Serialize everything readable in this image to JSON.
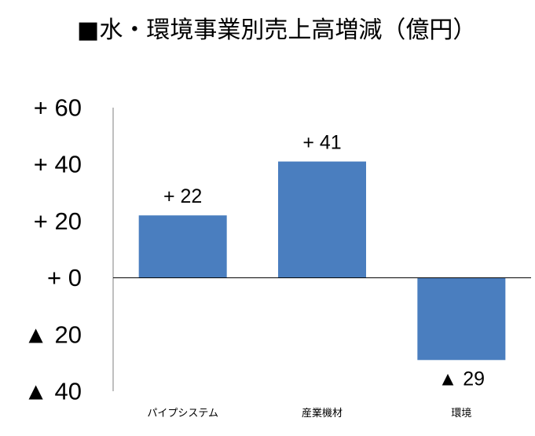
{
  "chart_data": {
    "type": "bar",
    "title": "■水・環境事業別売上高増減（億円）",
    "categories": [
      "パイプシステム",
      "産業機材",
      "環境"
    ],
    "values": [
      22,
      41,
      -29
    ],
    "data_labels": [
      "+ 22",
      "+ 41",
      "▲ 29"
    ],
    "ylim": [
      -40,
      60
    ],
    "yticks": [
      60,
      40,
      20,
      0,
      -20,
      -40
    ],
    "ytick_labels": [
      "+ 60",
      "+ 40",
      "+ 20",
      "+ 0",
      "▲ 20",
      "▲ 40"
    ],
    "bar_color": "#4a7ebf",
    "grid": false,
    "legend": false
  }
}
